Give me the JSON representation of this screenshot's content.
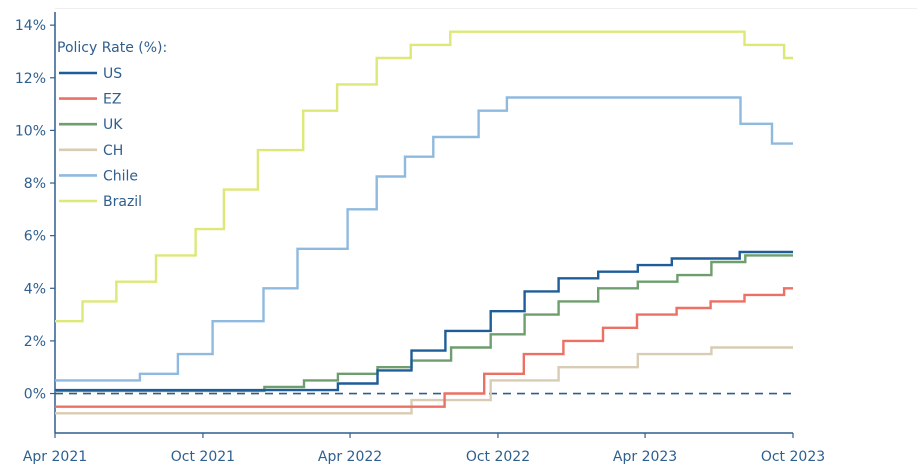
{
  "chart_data": {
    "type": "line",
    "line_shape": "step",
    "title": "",
    "xlabel": "",
    "ylabel": "",
    "legend": {
      "title": "Policy Rate (%):",
      "placement": "top-left"
    },
    "xlim": [
      "2021-04-01",
      "2023-10-01"
    ],
    "ylim": [
      -1.5,
      14.5
    ],
    "y_ticks": [
      0,
      2,
      4,
      6,
      8,
      10,
      12,
      14
    ],
    "y_tick_labels": [
      "0%",
      "2%",
      "4%",
      "6%",
      "8%",
      "10%",
      "12%",
      "14%"
    ],
    "x_ticks": [
      "2021-04-01",
      "2021-10-01",
      "2022-04-01",
      "2022-10-01",
      "2023-04-01",
      "2023-10-01"
    ],
    "x_tick_labels": [
      "Apr 2021",
      "Oct 2021",
      "Apr 2022",
      "Oct 2022",
      "Apr 2023",
      "Oct 2023"
    ],
    "reference_line": {
      "y": 0,
      "style": "dashed",
      "color": "#2f5f8f"
    },
    "axis_color": "#2f5f8f",
    "series": [
      {
        "name": "US",
        "color": "#1f5d99",
        "points": [
          [
            "2021-04-01",
            0.13
          ],
          [
            "2022-03-17",
            0.38
          ],
          [
            "2022-05-05",
            0.88
          ],
          [
            "2022-06-16",
            1.63
          ],
          [
            "2022-07-28",
            2.38
          ],
          [
            "2022-09-22",
            3.13
          ],
          [
            "2022-11-03",
            3.88
          ],
          [
            "2022-12-15",
            4.38
          ],
          [
            "2023-02-02",
            4.63
          ],
          [
            "2023-03-23",
            4.88
          ],
          [
            "2023-05-04",
            5.13
          ],
          [
            "2023-07-27",
            5.38
          ],
          [
            "2023-10-01",
            5.38
          ]
        ]
      },
      {
        "name": "EZ",
        "color": "#ec7063",
        "points": [
          [
            "2021-04-01",
            -0.5
          ],
          [
            "2022-07-27",
            0.0
          ],
          [
            "2022-09-14",
            0.75
          ],
          [
            "2022-11-02",
            1.5
          ],
          [
            "2022-12-21",
            2.0
          ],
          [
            "2023-02-08",
            2.5
          ],
          [
            "2023-03-22",
            3.0
          ],
          [
            "2023-05-10",
            3.25
          ],
          [
            "2023-06-21",
            3.5
          ],
          [
            "2023-08-02",
            3.75
          ],
          [
            "2023-09-20",
            4.0
          ],
          [
            "2023-10-01",
            4.0
          ]
        ]
      },
      {
        "name": "UK",
        "color": "#6e9e6e",
        "points": [
          [
            "2021-04-01",
            0.1
          ],
          [
            "2021-12-16",
            0.25
          ],
          [
            "2022-02-03",
            0.5
          ],
          [
            "2022-03-17",
            0.75
          ],
          [
            "2022-05-05",
            1.0
          ],
          [
            "2022-06-16",
            1.25
          ],
          [
            "2022-08-04",
            1.75
          ],
          [
            "2022-09-22",
            2.25
          ],
          [
            "2022-11-03",
            3.0
          ],
          [
            "2022-12-15",
            3.5
          ],
          [
            "2023-02-02",
            4.0
          ],
          [
            "2023-03-23",
            4.25
          ],
          [
            "2023-05-11",
            4.5
          ],
          [
            "2023-06-22",
            5.0
          ],
          [
            "2023-08-03",
            5.25
          ],
          [
            "2023-10-01",
            5.25
          ]
        ]
      },
      {
        "name": "CH",
        "color": "#d9ccb4",
        "points": [
          [
            "2021-04-01",
            -0.75
          ],
          [
            "2022-06-16",
            -0.25
          ],
          [
            "2022-09-22",
            0.5
          ],
          [
            "2022-12-15",
            1.0
          ],
          [
            "2023-03-23",
            1.5
          ],
          [
            "2023-06-22",
            1.75
          ],
          [
            "2023-10-01",
            1.75
          ]
        ]
      },
      {
        "name": "Chile",
        "color": "#8fbadf",
        "points": [
          [
            "2021-04-01",
            0.5
          ],
          [
            "2021-07-15",
            0.75
          ],
          [
            "2021-08-31",
            1.5
          ],
          [
            "2021-10-13",
            2.75
          ],
          [
            "2021-12-15",
            4.0
          ],
          [
            "2022-01-26",
            5.5
          ],
          [
            "2022-03-29",
            7.0
          ],
          [
            "2022-05-04",
            8.25
          ],
          [
            "2022-06-08",
            9.0
          ],
          [
            "2022-07-13",
            9.75
          ],
          [
            "2022-09-07",
            10.75
          ],
          [
            "2022-10-12",
            11.25
          ],
          [
            "2023-07-28",
            10.25
          ],
          [
            "2023-09-05",
            9.5
          ],
          [
            "2023-10-01",
            9.5
          ]
        ]
      },
      {
        "name": "Brazil",
        "color": "#dde878",
        "points": [
          [
            "2021-04-01",
            2.75
          ],
          [
            "2021-05-05",
            3.5
          ],
          [
            "2021-06-16",
            4.25
          ],
          [
            "2021-08-04",
            5.25
          ],
          [
            "2021-09-22",
            6.25
          ],
          [
            "2021-10-27",
            7.75
          ],
          [
            "2021-12-08",
            9.25
          ],
          [
            "2022-02-02",
            10.75
          ],
          [
            "2022-03-16",
            11.75
          ],
          [
            "2022-05-04",
            12.75
          ],
          [
            "2022-06-15",
            13.25
          ],
          [
            "2022-08-03",
            13.75
          ],
          [
            "2023-08-02",
            13.25
          ],
          [
            "2023-09-20",
            12.75
          ],
          [
            "2023-10-01",
            12.75
          ]
        ]
      }
    ]
  }
}
